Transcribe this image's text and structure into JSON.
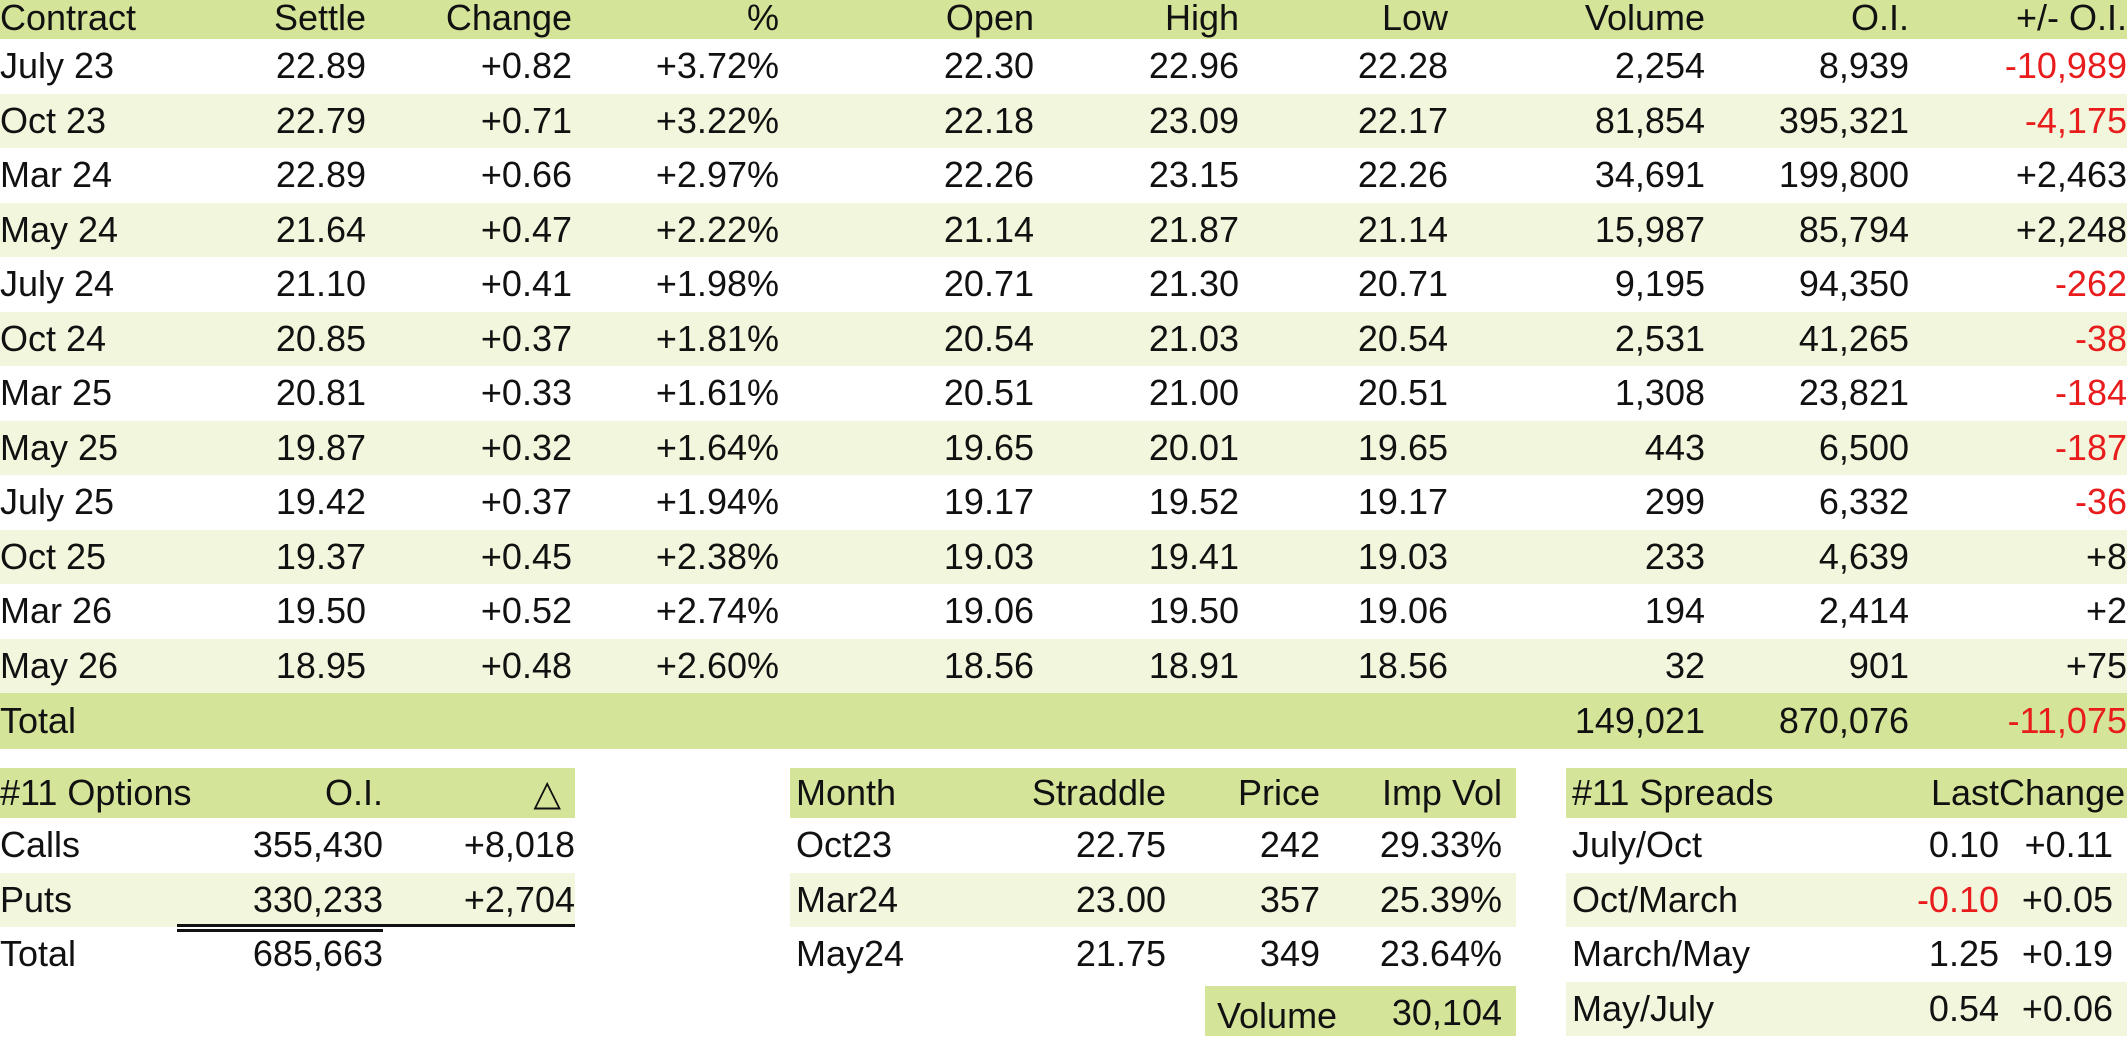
{
  "colors": {
    "header_bg": "#d4e59a",
    "stripe_bg": "#f1f6dc",
    "negative": "#e81c1c"
  },
  "futures": {
    "headers": [
      "Contract",
      "Settle",
      "Change",
      "%",
      "Open",
      "High",
      "Low",
      "Volume",
      "O.I.",
      "+/- O.I."
    ],
    "rows": [
      {
        "contract": "July 23",
        "settle": "22.89",
        "change": "+0.82",
        "pct": "+3.72%",
        "open": "22.30",
        "high": "22.96",
        "low": "22.28",
        "volume": "2,254",
        "oi": "8,939",
        "oi_change": "-10,989"
      },
      {
        "contract": "Oct 23",
        "settle": "22.79",
        "change": "+0.71",
        "pct": "+3.22%",
        "open": "22.18",
        "high": "23.09",
        "low": "22.17",
        "volume": "81,854",
        "oi": "395,321",
        "oi_change": "-4,175"
      },
      {
        "contract": "Mar 24",
        "settle": "22.89",
        "change": "+0.66",
        "pct": "+2.97%",
        "open": "22.26",
        "high": "23.15",
        "low": "22.26",
        "volume": "34,691",
        "oi": "199,800",
        "oi_change": "+2,463"
      },
      {
        "contract": "May 24",
        "settle": "21.64",
        "change": "+0.47",
        "pct": "+2.22%",
        "open": "21.14",
        "high": "21.87",
        "low": "21.14",
        "volume": "15,987",
        "oi": "85,794",
        "oi_change": "+2,248"
      },
      {
        "contract": "July 24",
        "settle": "21.10",
        "change": "+0.41",
        "pct": "+1.98%",
        "open": "20.71",
        "high": "21.30",
        "low": "20.71",
        "volume": "9,195",
        "oi": "94,350",
        "oi_change": "-262"
      },
      {
        "contract": "Oct 24",
        "settle": "20.85",
        "change": "+0.37",
        "pct": "+1.81%",
        "open": "20.54",
        "high": "21.03",
        "low": "20.54",
        "volume": "2,531",
        "oi": "41,265",
        "oi_change": "-38"
      },
      {
        "contract": "Mar 25",
        "settle": "20.81",
        "change": "+0.33",
        "pct": "+1.61%",
        "open": "20.51",
        "high": "21.00",
        "low": "20.51",
        "volume": "1,308",
        "oi": "23,821",
        "oi_change": "-184"
      },
      {
        "contract": "May 25",
        "settle": "19.87",
        "change": "+0.32",
        "pct": "+1.64%",
        "open": "19.65",
        "high": "20.01",
        "low": "19.65",
        "volume": "443",
        "oi": "6,500",
        "oi_change": "-187"
      },
      {
        "contract": "July 25",
        "settle": "19.42",
        "change": "+0.37",
        "pct": "+1.94%",
        "open": "19.17",
        "high": "19.52",
        "low": "19.17",
        "volume": "299",
        "oi": "6,332",
        "oi_change": "-36"
      },
      {
        "contract": "Oct 25",
        "settle": "19.37",
        "change": "+0.45",
        "pct": "+2.38%",
        "open": "19.03",
        "high": "19.41",
        "low": "19.03",
        "volume": "233",
        "oi": "4,639",
        "oi_change": "+8"
      },
      {
        "contract": "Mar 26",
        "settle": "19.50",
        "change": "+0.52",
        "pct": "+2.74%",
        "open": "19.06",
        "high": "19.50",
        "low": "19.06",
        "volume": "194",
        "oi": "2,414",
        "oi_change": "+2"
      },
      {
        "contract": "May 26",
        "settle": "18.95",
        "change": "+0.48",
        "pct": "+2.60%",
        "open": "18.56",
        "high": "18.91",
        "low": "18.56",
        "volume": "32",
        "oi": "901",
        "oi_change": "+75"
      }
    ],
    "total": {
      "label": "Total",
      "volume": "149,021",
      "oi": "870,076",
      "oi_change": "-11,075"
    }
  },
  "options": {
    "headers": [
      "#11 Options",
      "O.I.",
      "△"
    ],
    "rows": [
      {
        "label": "Calls",
        "oi": "355,430",
        "delta": "+8,018"
      },
      {
        "label": "Puts",
        "oi": "330,233",
        "delta": "+2,704"
      },
      {
        "label": "Total",
        "oi": "685,663",
        "delta": ""
      }
    ]
  },
  "straddles": {
    "headers": [
      "Month",
      "Straddle",
      "Price",
      "Imp Vol"
    ],
    "rows": [
      {
        "month": "Oct23",
        "straddle": "22.75",
        "price": "242",
        "imp_vol": "29.33%"
      },
      {
        "month": "Mar24",
        "straddle": "23.00",
        "price": "357",
        "imp_vol": "25.39%"
      },
      {
        "month": "May24",
        "straddle": "21.75",
        "price": "349",
        "imp_vol": "23.64%"
      }
    ],
    "volume_label": "Volume",
    "volume_value": "30,104"
  },
  "spreads": {
    "headers": [
      "#11 Spreads",
      "Last",
      "Change"
    ],
    "rows": [
      {
        "label": "July/Oct",
        "last": "0.10",
        "change": "+0.11"
      },
      {
        "label": "Oct/March",
        "last": "-0.10",
        "change": "+0.05"
      },
      {
        "label": "March/May",
        "last": "1.25",
        "change": "+0.19"
      },
      {
        "label": "May/July",
        "last": "0.54",
        "change": "+0.06"
      }
    ]
  }
}
